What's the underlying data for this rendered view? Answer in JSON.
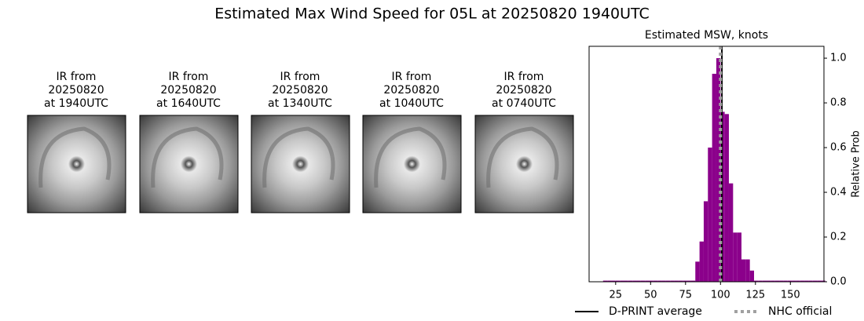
{
  "title": "Estimated Max Wind Speed for 05L at 20250820 1940UTC",
  "panels": [
    {
      "title": [
        "IR from",
        "20250820",
        "at 1940UTC"
      ]
    },
    {
      "title": [
        "IR from",
        "20250820",
        "at 1640UTC"
      ]
    },
    {
      "title": [
        "IR from",
        "20250820",
        "at 1340UTC"
      ]
    },
    {
      "title": [
        "IR from",
        "20250820",
        "at 1040UTC"
      ]
    },
    {
      "title": [
        "IR from",
        "20250820",
        "at 0740UTC"
      ]
    }
  ],
  "chart_data": {
    "type": "histogram",
    "title": "Estimated MSW, knots",
    "ylabel": "Relative Prob",
    "color": "#8b008b",
    "bins": [
      16,
      19,
      22,
      25,
      28,
      31,
      34,
      37,
      40,
      43,
      46,
      49,
      52,
      55,
      58,
      61,
      64,
      67,
      70,
      73,
      76,
      79,
      82,
      85,
      88,
      91,
      94,
      97,
      100,
      103,
      106,
      109,
      112,
      115,
      118,
      121,
      124,
      127,
      130,
      133,
      136,
      139,
      142,
      145,
      148,
      151,
      154,
      157,
      160,
      163,
      166,
      169,
      172,
      175
    ],
    "counts": [
      0.005,
      0.005,
      0.005,
      0.005,
      0.005,
      0.005,
      0.005,
      0.005,
      0.005,
      0.005,
      0.005,
      0.005,
      0.005,
      0.005,
      0.005,
      0.005,
      0.005,
      0.005,
      0.005,
      0.005,
      0.005,
      0.005,
      0.09,
      0.18,
      0.36,
      0.6,
      0.93,
      1.0,
      0.76,
      0.75,
      0.44,
      0.22,
      0.22,
      0.1,
      0.1,
      0.05,
      0.005,
      0.005,
      0.005,
      0.005,
      0.005,
      0.005,
      0.005,
      0.005,
      0.005,
      0.005,
      0.005,
      0.005,
      0.005,
      0.005,
      0.005,
      0.005,
      0.005
    ],
    "reference_lines": [
      {
        "name": "D-PRINT average",
        "value": 101,
        "color": "#000000",
        "style": "solid"
      },
      {
        "name": "NHC official",
        "value": 100,
        "color": "#a0a0a0",
        "style": "dotted"
      }
    ],
    "xlim": [
      6,
      174
    ],
    "xticks": [
      25,
      50,
      75,
      100,
      125,
      150
    ],
    "ylim": [
      0,
      1.053
    ],
    "yticks": [
      {
        "value": 0,
        "label": "0.0"
      },
      0.2,
      0.4,
      0.6,
      0.8,
      {
        "value": 1,
        "label": "1.0"
      }
    ],
    "legend": "bottom"
  }
}
